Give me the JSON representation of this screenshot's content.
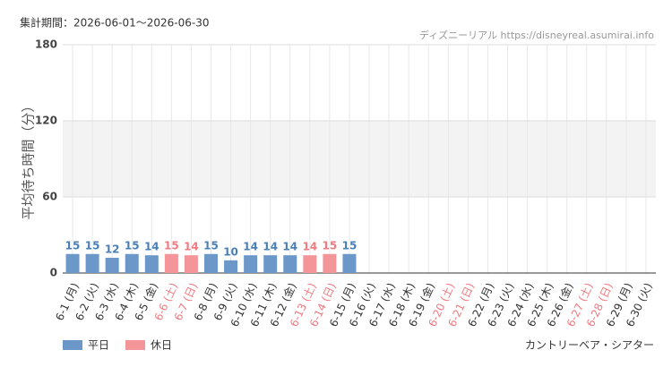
{
  "chart_data": {
    "type": "bar",
    "subtitle": "集計期間：2026-06-01～2026-06-30",
    "source": "ディズニーリアル https://disneyreal.asumirai.info",
    "y_label": "平均待ち時間（分）",
    "attraction": "カントリーベア・シアター",
    "categories": [
      "6-1 (月)",
      "6-2 (火)",
      "6-3 (水)",
      "6-4 (木)",
      "6-5 (金)",
      "6-6 (土)",
      "6-7 (日)",
      "6-8 (月)",
      "6-9 (火)",
      "6-10 (水)",
      "6-11 (木)",
      "6-12 (金)",
      "6-13 (土)",
      "6-14 (日)",
      "6-15 (月)",
      "6-16 (火)",
      "6-17 (水)",
      "6-18 (木)",
      "6-19 (金)",
      "6-20 (土)",
      "6-21 (日)",
      "6-22 (月)",
      "6-23 (火)",
      "6-24 (水)",
      "6-25 (木)",
      "6-26 (金)",
      "6-27 (土)",
      "6-28 (日)",
      "6-29 (月)",
      "6-30 (火)"
    ],
    "category_colors": [
      "#333",
      "#333",
      "#333",
      "#333",
      "#333",
      "#f07a80",
      "#f07a80",
      "#333",
      "#333",
      "#333",
      "#333",
      "#333",
      "#f07a80",
      "#f07a80",
      "#333",
      "#333",
      "#333",
      "#333",
      "#333",
      "#f07a80",
      "#f07a80",
      "#333",
      "#333",
      "#333",
      "#333",
      "#333",
      "#f07a80",
      "#f07a80",
      "#333",
      "#333"
    ],
    "series": [
      {
        "name": "平日",
        "color": "#6b98c9",
        "label_color": "#4a7fb5",
        "values": [
          15,
          15,
          12,
          15,
          14,
          null,
          null,
          15,
          10,
          14,
          14,
          14,
          null,
          null,
          15,
          null,
          null,
          null,
          null,
          null,
          null,
          null,
          null,
          null,
          null,
          null,
          null,
          null,
          null,
          null
        ]
      },
      {
        "name": "休日",
        "color": "#f4959a",
        "label_color": "#f07a80",
        "values": [
          null,
          null,
          null,
          null,
          null,
          15,
          14,
          null,
          null,
          null,
          null,
          null,
          14,
          15,
          null,
          null,
          null,
          null,
          null,
          null,
          null,
          null,
          null,
          null,
          null,
          null,
          null,
          null,
          null,
          null
        ]
      }
    ],
    "ylim": [
      0,
      180
    ],
    "yticks": [
      0,
      60,
      120,
      180
    ],
    "grid": true,
    "band": [
      60,
      120
    ]
  }
}
